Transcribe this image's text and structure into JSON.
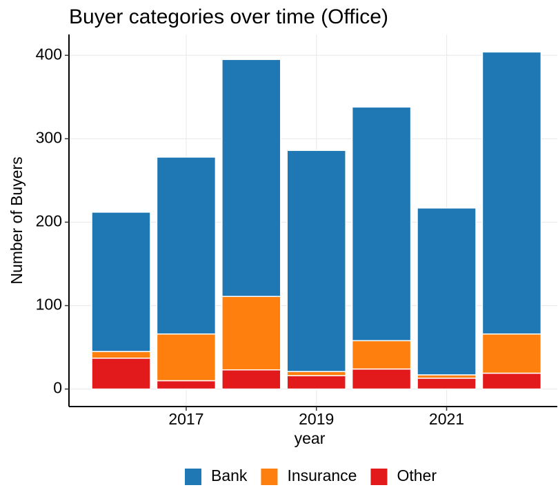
{
  "chart_data": {
    "type": "bar",
    "stacked": true,
    "title": "Buyer categories over time (Office)",
    "x_label": "year",
    "y_label": "Number of Buyers",
    "x": [
      2016,
      2017,
      2018,
      2019,
      2020,
      2021,
      2022
    ],
    "series": [
      {
        "name": "Bank",
        "color": "#1f77b4",
        "values": [
          167,
          212,
          284,
          265,
          280,
          200,
          338
        ]
      },
      {
        "name": "Insurance",
        "color": "#ff7f0e",
        "values": [
          8,
          56,
          88,
          5,
          34,
          4,
          47
        ]
      },
      {
        "name": "Other",
        "color": "#e31a1c",
        "values": [
          37,
          10,
          23,
          16,
          24,
          13,
          19
        ]
      }
    ],
    "xlim": [
      2015.2,
      2022.7
    ],
    "xticks": [
      2017,
      2019,
      2021
    ],
    "ylim": [
      -21,
      425
    ],
    "yticks": [
      0,
      100,
      200,
      300,
      400
    ],
    "grid": true,
    "legend": "bottom"
  }
}
